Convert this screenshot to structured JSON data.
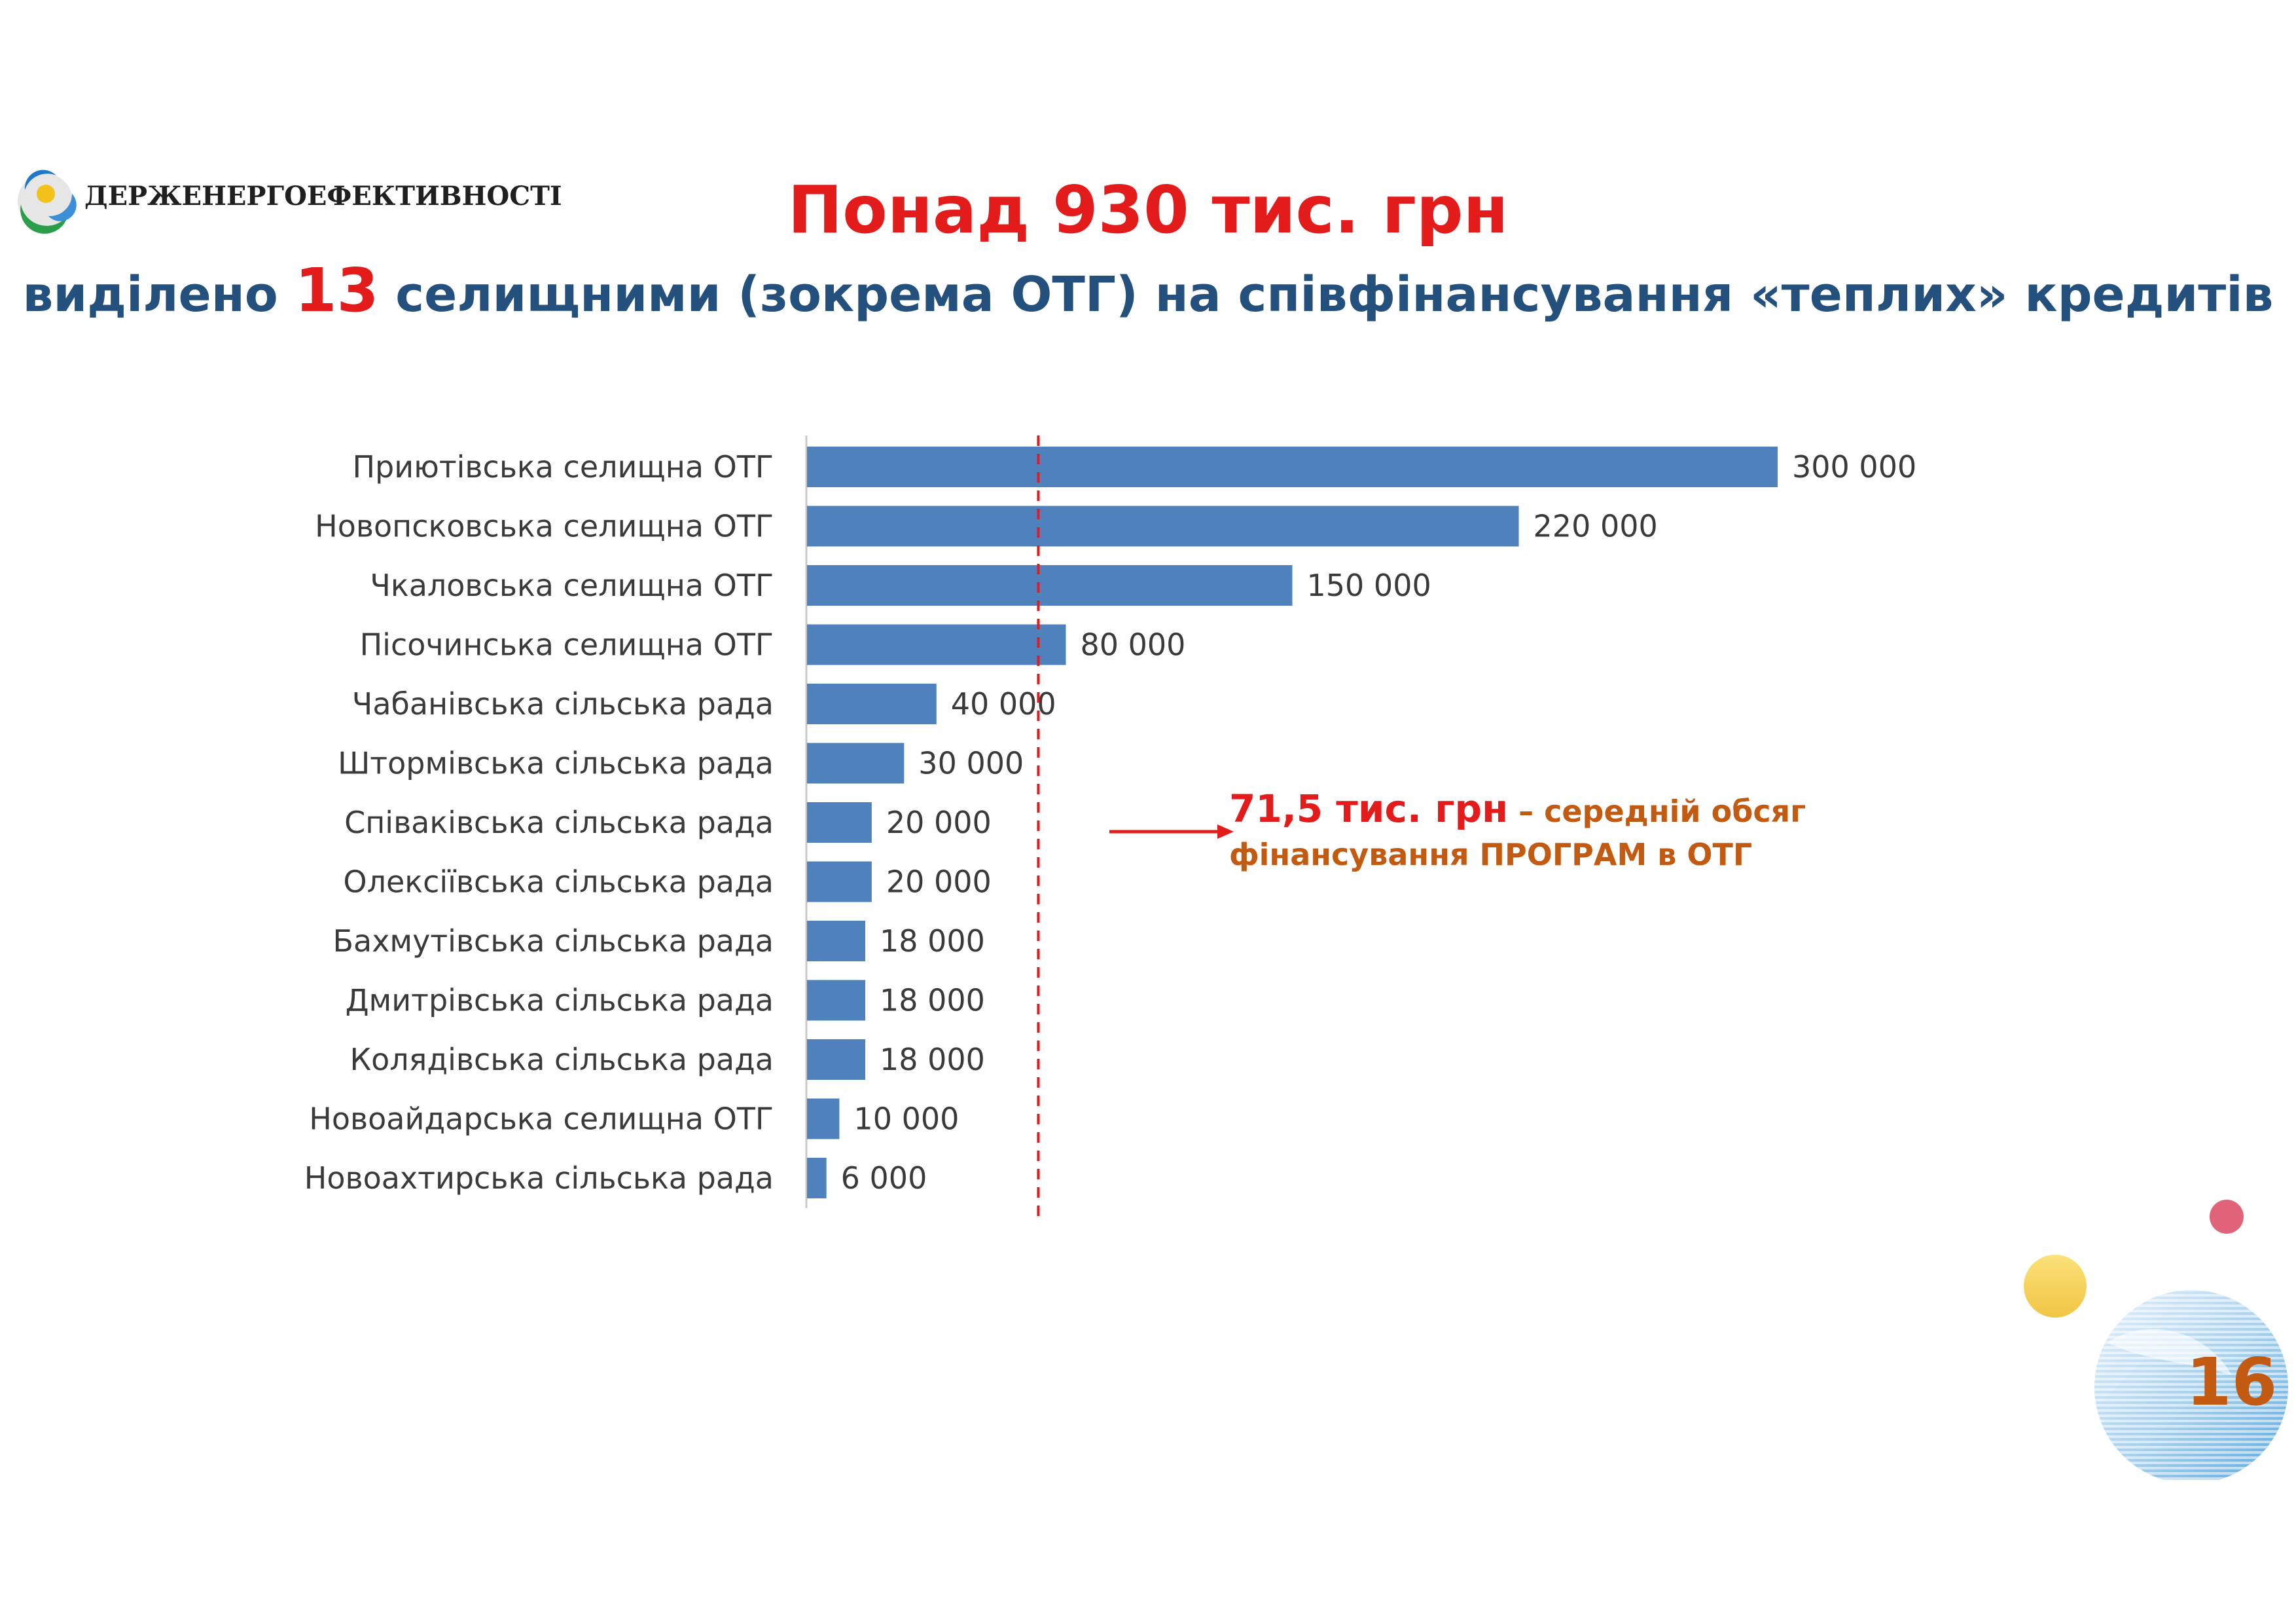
{
  "logo": {
    "text": "ДЕРЖЕНЕРГОЕФЕКТИВНОСТІ",
    "icon": "agency-globe-logo"
  },
  "title": {
    "line1": "Понад 930 тис. грн",
    "line2_before": "виділено ",
    "line2_number": "13",
    "line2_after": " селищними (зокрема ОТГ) на співфінансування «теплих» кредитів"
  },
  "annotation": {
    "value": "71,5 тис. грн",
    "text_part1": " – середній обсяг",
    "text_part2": "фінансування ПРОГРАМ в ОТГ",
    "arrow_icon": "red-arrow-right-icon"
  },
  "page_number": "16",
  "colors": {
    "bar": "#4f81bd",
    "accent_red": "#e31b1b",
    "title_blue": "#23507c",
    "annotation_orange": "#c25a12"
  },
  "chart_data": {
    "type": "bar",
    "orientation": "horizontal",
    "title": "",
    "xlabel": "",
    "ylabel": "",
    "categories": [
      "Приютівська селищна ОТГ",
      "Новопсковська селищна ОТГ",
      "Чкаловська селищна ОТГ",
      "Пісочинська селищна ОТГ",
      "Чабанівська сільська рада",
      "Штормівська сільська рада",
      "Співаківська сільська рада",
      "Олексіївська сільська рада",
      "Бахмутівська сільська рада",
      "Дмитрівська сільська рада",
      "Колядівська сільська рада",
      "Новоайдарська селищна ОТГ",
      "Новоахтирська сільська рада"
    ],
    "values": [
      300000,
      220000,
      150000,
      80000,
      40000,
      30000,
      20000,
      20000,
      18000,
      18000,
      18000,
      10000,
      6000
    ],
    "value_labels": [
      "300 000",
      "220 000",
      "150 000",
      "80 000",
      "40 000",
      "30 000",
      "20 000",
      "20 000",
      "18 000",
      "18 000",
      "18 000",
      "10 000",
      "6 000"
    ],
    "xlim": [
      0,
      300000
    ],
    "reference_line": {
      "value": 71500,
      "style": "dashed",
      "color": "#e31b1b"
    },
    "grid": false,
    "legend": "none"
  }
}
